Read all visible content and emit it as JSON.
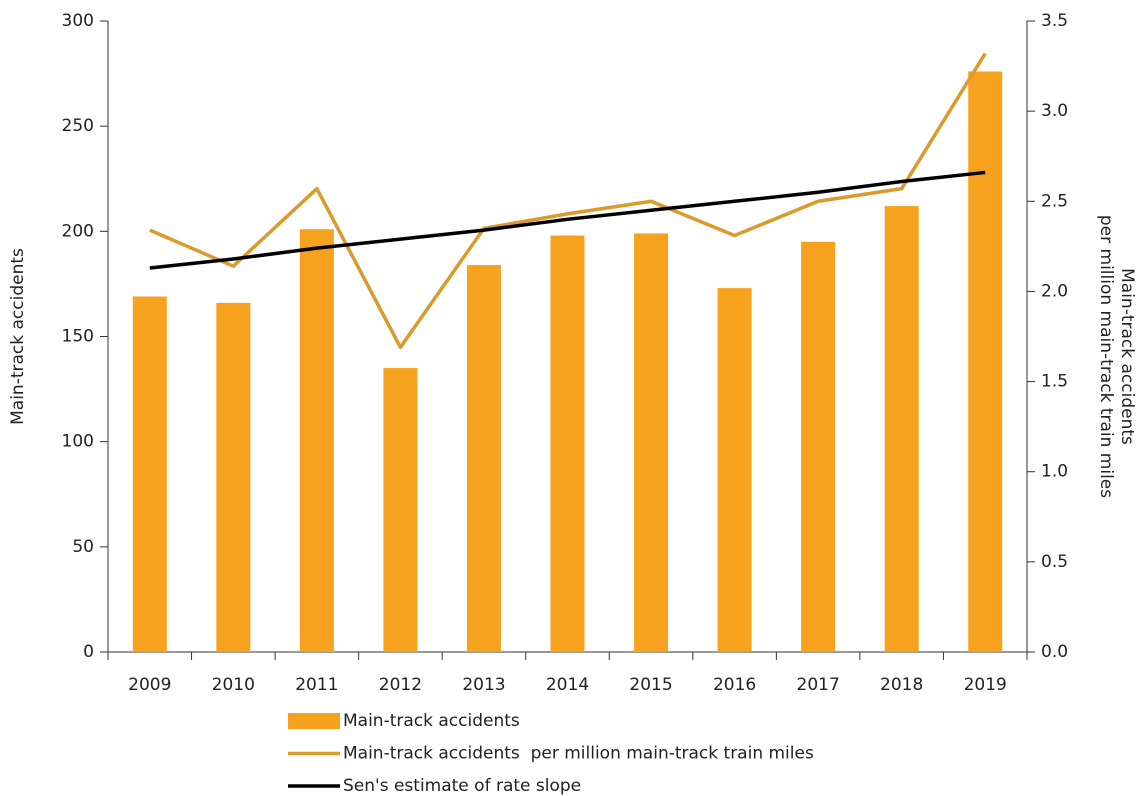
{
  "chart_data": {
    "type": "bar-line",
    "categories": [
      "2009",
      "2010",
      "2011",
      "2012",
      "2013",
      "2014",
      "2015",
      "2016",
      "2017",
      "2018",
      "2019"
    ],
    "series": [
      {
        "name": "Main-track accidents",
        "type": "bar",
        "color": "#f6a21e",
        "values": [
          169,
          166,
          201,
          135,
          184,
          198,
          199,
          173,
          195,
          212,
          276
        ]
      },
      {
        "name": "Main-track accidents  per million main-track train miles",
        "type": "line",
        "axis": "y2",
        "color": "#db9a2c",
        "values": [
          2.34,
          2.14,
          2.57,
          1.69,
          2.35,
          2.43,
          2.5,
          2.31,
          2.5,
          2.57,
          3.32
        ]
      },
      {
        "name": "Sen's estimate of rate slope",
        "type": "line",
        "axis": "y2",
        "color": "#000000",
        "values": [
          2.13,
          2.18,
          2.24,
          2.29,
          2.34,
          2.4,
          2.45,
          2.5,
          2.55,
          2.61,
          2.66
        ]
      }
    ],
    "ylabel": "Main-track accidents",
    "y2label": [
      "Main-track accidents",
      "per million main-track train miles"
    ],
    "ylim": [
      0,
      300
    ],
    "yticks": [
      0,
      50,
      100,
      150,
      200,
      250,
      300
    ],
    "y2lim": [
      0,
      3.5
    ],
    "y2ticks": [
      {
        "value": 0,
        "label": "0.0"
      },
      0.5,
      {
        "value": 1,
        "label": "1.0"
      },
      1.5,
      {
        "value": 2,
        "label": "2.0"
      },
      2.5,
      {
        "value": 3,
        "label": "3.0"
      },
      3.5
    ],
    "grid": false,
    "legend": "bottom"
  }
}
